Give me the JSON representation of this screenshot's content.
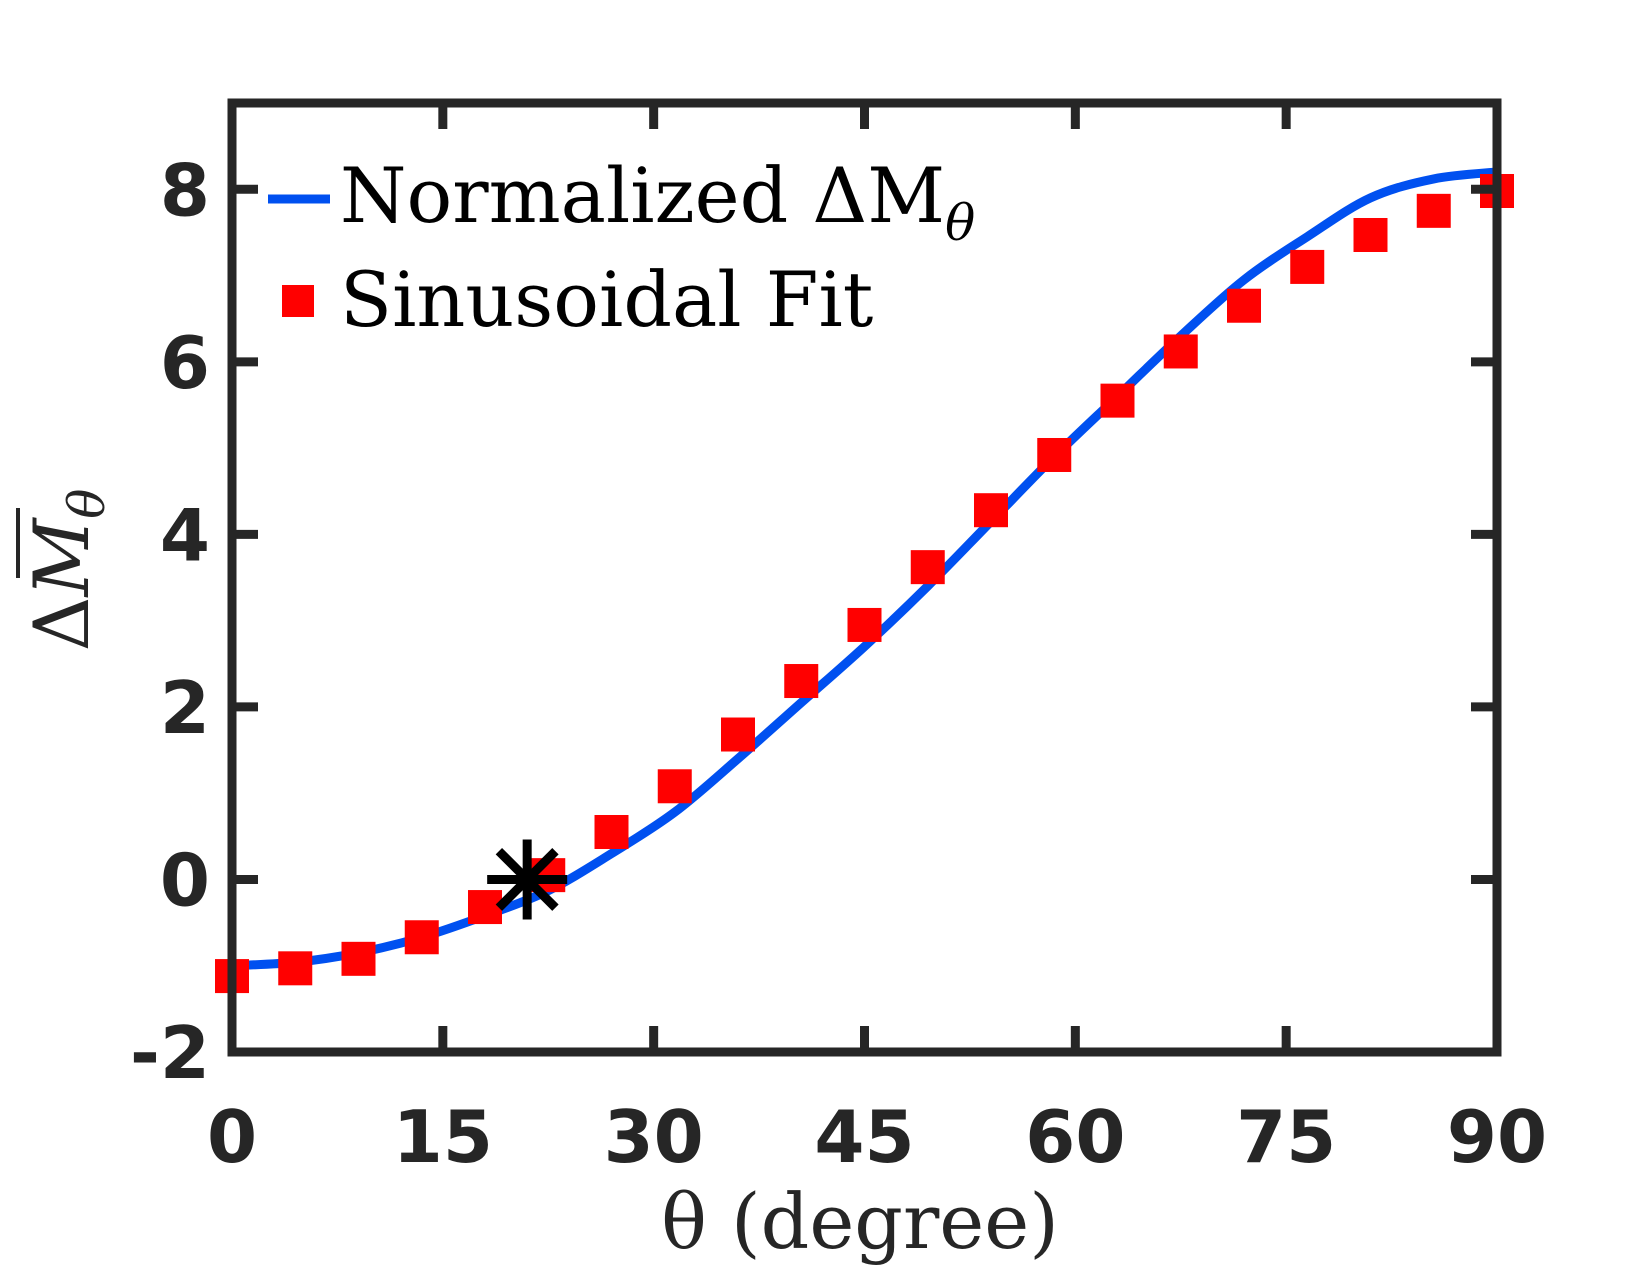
{
  "chart_data": {
    "type": "line",
    "title": "",
    "xlabel": "θ (degree)",
    "ylabel_prefix": "Δ",
    "ylabel_symbol": "M",
    "ylabel_subscript": "θ",
    "xlim": [
      0,
      90
    ],
    "ylim": [
      -2,
      9
    ],
    "xticks": [
      0,
      15,
      30,
      45,
      60,
      75,
      90
    ],
    "yticks": [
      -2,
      0,
      2,
      4,
      6,
      8
    ],
    "grid": false,
    "legend_position": "top-left",
    "colors": {
      "line": "#0050f0",
      "fit": "#ff0000",
      "axes": "#262626",
      "marker": "#000000"
    },
    "series": [
      {
        "name": "Normalized ΔM",
        "name_subscript": "θ",
        "style": "line",
        "x": [
          0,
          4.5,
          9,
          13.5,
          18,
          22.5,
          27,
          31.5,
          36,
          40.5,
          45,
          49.5,
          54,
          58.5,
          63,
          67.5,
          72,
          76.5,
          81,
          85.5,
          90
        ],
        "y": [
          -1.0,
          -0.96,
          -0.85,
          -0.67,
          -0.42,
          -0.13,
          0.3,
          0.78,
          1.4,
          2.05,
          2.7,
          3.4,
          4.15,
          4.9,
          5.6,
          6.3,
          6.95,
          7.45,
          7.9,
          8.12,
          8.2
        ]
      },
      {
        "name": "Sinusoidal Fit",
        "style": "square-markers",
        "x": [
          0,
          4.5,
          9,
          13.5,
          18,
          22.5,
          27,
          31.5,
          36,
          40.5,
          45,
          49.5,
          54,
          58.5,
          63,
          67.5,
          72,
          76.5,
          81,
          85.5,
          90
        ],
        "y": [
          -1.12,
          -1.03,
          -0.92,
          -0.67,
          -0.32,
          0.05,
          0.55,
          1.08,
          1.68,
          2.3,
          2.95,
          3.62,
          4.28,
          4.92,
          5.55,
          6.12,
          6.65,
          7.1,
          7.47,
          7.75,
          7.98
        ]
      }
    ],
    "annotations": [
      {
        "type": "asterisk-marker",
        "x": 21,
        "y": 0
      }
    ]
  }
}
